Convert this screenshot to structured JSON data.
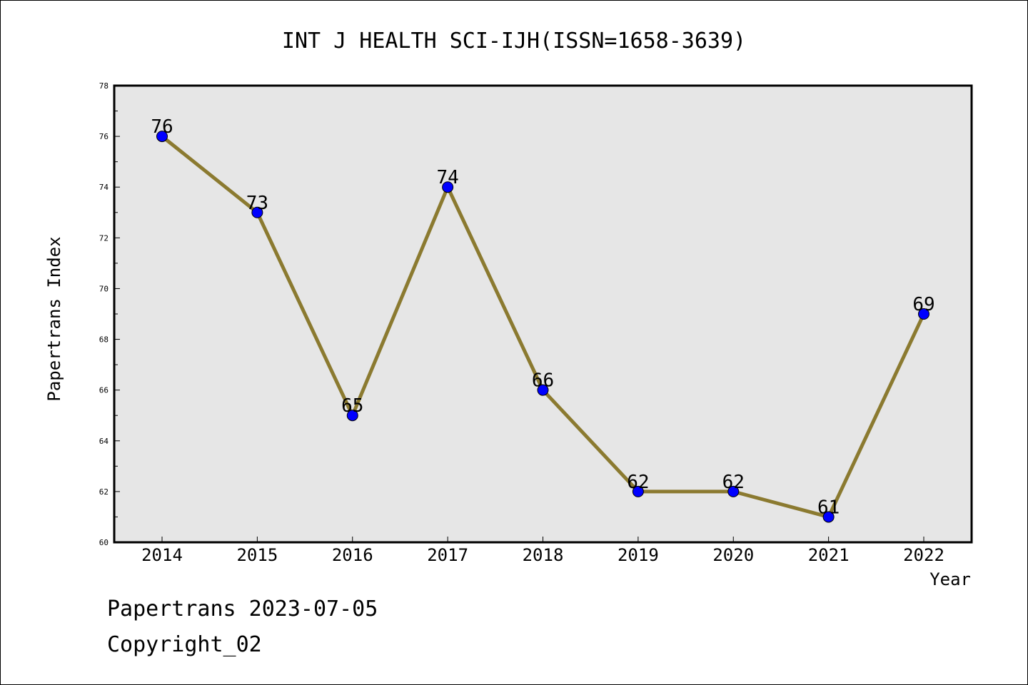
{
  "chart_data": {
    "type": "line",
    "title": "INT J HEALTH SCI-IJH(ISSN=1658-3639)",
    "xlabel": "Year",
    "ylabel": "Papertrans Index",
    "categories": [
      "2014",
      "2015",
      "2016",
      "2017",
      "2018",
      "2019",
      "2020",
      "2021",
      "2022"
    ],
    "series": [
      {
        "values": [
          76,
          73,
          65,
          74,
          66,
          62,
          62,
          61,
          69
        ]
      }
    ],
    "data_labels": [
      "76",
      "73",
      "65",
      "74",
      "66",
      "62",
      "62",
      "61",
      "69"
    ],
    "ylim": [
      60,
      78
    ],
    "yticks": [
      "60",
      "62",
      "64",
      "66",
      "68",
      "70",
      "72",
      "74",
      "76",
      "78"
    ],
    "ytick_values": [
      60,
      62,
      64,
      66,
      68,
      70,
      72,
      74,
      76,
      78
    ],
    "grid": false,
    "legend": "none",
    "colors": {
      "line": "#8B7A30",
      "marker": "#0000FF",
      "plot_background": "#E6E6E6"
    }
  },
  "footer": {
    "line1": "Papertrans 2023-07-05",
    "line2": "Copyright_02"
  }
}
